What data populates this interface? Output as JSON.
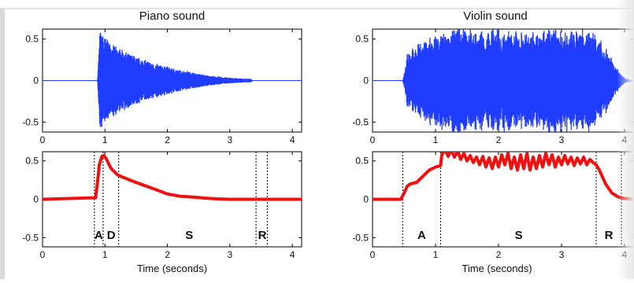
{
  "chart_data": [
    {
      "type": "line",
      "title": "Piano sound",
      "xlabel": "",
      "ylabel": "",
      "xlim": [
        0,
        4.15
      ],
      "ylim": [
        -0.62,
        0.62
      ],
      "xticks": [
        "0",
        "1",
        "2",
        "3",
        "4"
      ],
      "yticks": [
        "0.5",
        "0",
        "-0.5"
      ],
      "series": [
        {
          "kind": "waveform-envelope",
          "color": "#1f3cff",
          "x": [
            0.0,
            0.88,
            0.92,
            0.95,
            1.0,
            1.1,
            1.2,
            1.4,
            1.6,
            1.8,
            2.0,
            2.2,
            2.4,
            2.6,
            2.8,
            3.0,
            3.2,
            3.35,
            3.36,
            4.15
          ],
          "values": [
            0.0,
            0.0,
            0.6,
            0.57,
            0.52,
            0.45,
            0.4,
            0.32,
            0.26,
            0.21,
            0.17,
            0.13,
            0.1,
            0.07,
            0.05,
            0.035,
            0.025,
            0.02,
            0.0,
            0.0
          ]
        }
      ]
    },
    {
      "type": "line",
      "title": "Violin sound",
      "xlabel": "",
      "ylabel": "",
      "xlim": [
        0,
        4.15
      ],
      "ylim": [
        -0.62,
        0.62
      ],
      "xticks": [
        "0",
        "1",
        "2",
        "3",
        "4"
      ],
      "yticks": [
        "0.5",
        "0",
        "-0.5"
      ],
      "series": [
        {
          "kind": "waveform-envelope",
          "color": "#1f3cff",
          "x": [
            0.0,
            0.48,
            0.55,
            0.7,
            0.9,
            1.1,
            1.3,
            1.5,
            1.7,
            1.9,
            2.1,
            2.3,
            2.5,
            2.7,
            2.9,
            3.1,
            3.3,
            3.5,
            3.6,
            3.75,
            3.9,
            4.0,
            4.15
          ],
          "values": [
            0.0,
            0.0,
            0.3,
            0.42,
            0.5,
            0.58,
            0.62,
            0.6,
            0.57,
            0.59,
            0.6,
            0.56,
            0.55,
            0.58,
            0.6,
            0.59,
            0.6,
            0.58,
            0.5,
            0.32,
            0.12,
            0.03,
            0.0
          ]
        }
      ]
    },
    {
      "type": "line",
      "title": "",
      "xlabel": "Time (seconds)",
      "ylabel": "",
      "xlim": [
        0,
        4.15
      ],
      "ylim": [
        -0.62,
        0.62
      ],
      "xticks": [
        "0",
        "1",
        "2",
        "3",
        "4"
      ],
      "yticks": [
        "0.5",
        "0",
        "-0.5"
      ],
      "series": [
        {
          "kind": "envelope",
          "color": "#ee1111",
          "x": [
            0.0,
            0.85,
            0.88,
            0.91,
            0.95,
            0.98,
            1.02,
            1.06,
            1.1,
            1.15,
            1.2,
            1.25,
            1.4,
            1.6,
            1.8,
            2.0,
            2.2,
            2.4,
            2.6,
            2.8,
            3.0,
            3.2,
            3.4,
            3.6,
            4.15
          ],
          "values": [
            0.0,
            0.02,
            0.22,
            0.45,
            0.56,
            0.57,
            0.53,
            0.46,
            0.4,
            0.36,
            0.32,
            0.3,
            0.25,
            0.19,
            0.13,
            0.07,
            0.04,
            0.03,
            0.015,
            0.005,
            0.0,
            0.0,
            0.0,
            0.0,
            0.0
          ]
        }
      ],
      "phase_markers": [
        0.83,
        0.97,
        1.22,
        3.42,
        3.6
      ],
      "phase_labels": [
        {
          "text": "A",
          "x": 0.9
        },
        {
          "text": "D",
          "x": 1.1
        },
        {
          "text": "S",
          "x": 2.35
        },
        {
          "text": "R",
          "x": 3.52
        }
      ]
    },
    {
      "type": "line",
      "title": "",
      "xlabel": "Time (seconds)",
      "ylabel": "",
      "xlim": [
        0,
        4.15
      ],
      "ylim": [
        -0.62,
        0.62
      ],
      "xticks": [
        "0",
        "1",
        "2",
        "3",
        "4"
      ],
      "yticks": [
        "0.5",
        "0",
        "-0.5"
      ],
      "series": [
        {
          "kind": "envelope",
          "color": "#ee1111",
          "x": [
            0.0,
            0.45,
            0.5,
            0.55,
            0.6,
            0.7,
            0.8,
            0.9,
            1.0,
            1.08,
            1.1,
            1.15,
            1.2,
            1.25,
            1.3,
            1.35,
            1.4,
            1.45,
            1.5,
            1.55,
            1.6,
            1.65,
            1.7,
            1.75,
            1.8,
            1.85,
            1.9,
            1.95,
            2.0,
            2.05,
            2.1,
            2.15,
            2.2,
            2.25,
            2.3,
            2.35,
            2.4,
            2.45,
            2.5,
            2.55,
            2.6,
            2.65,
            2.7,
            2.75,
            2.8,
            2.85,
            2.9,
            2.95,
            3.0,
            3.05,
            3.1,
            3.15,
            3.2,
            3.25,
            3.3,
            3.35,
            3.4,
            3.45,
            3.5,
            3.55,
            3.6,
            3.7,
            3.8,
            3.9,
            4.0,
            4.15
          ],
          "values": [
            0.0,
            0.0,
            0.08,
            0.17,
            0.2,
            0.22,
            0.3,
            0.38,
            0.42,
            0.44,
            0.58,
            0.65,
            0.56,
            0.64,
            0.55,
            0.63,
            0.52,
            0.6,
            0.5,
            0.57,
            0.48,
            0.55,
            0.45,
            0.56,
            0.42,
            0.54,
            0.4,
            0.55,
            0.42,
            0.58,
            0.45,
            0.6,
            0.4,
            0.55,
            0.38,
            0.58,
            0.4,
            0.6,
            0.38,
            0.55,
            0.4,
            0.57,
            0.42,
            0.6,
            0.45,
            0.58,
            0.42,
            0.55,
            0.45,
            0.57,
            0.46,
            0.55,
            0.44,
            0.54,
            0.46,
            0.55,
            0.45,
            0.52,
            0.48,
            0.45,
            0.38,
            0.2,
            0.08,
            0.03,
            0.01,
            0.0
          ]
        }
      ],
      "phase_markers": [
        0.48,
        1.08,
        3.55,
        3.95
      ],
      "phase_labels": [
        {
          "text": "A",
          "x": 0.78
        },
        {
          "text": "S",
          "x": 2.32
        },
        {
          "text": "R",
          "x": 3.75
        }
      ]
    }
  ]
}
